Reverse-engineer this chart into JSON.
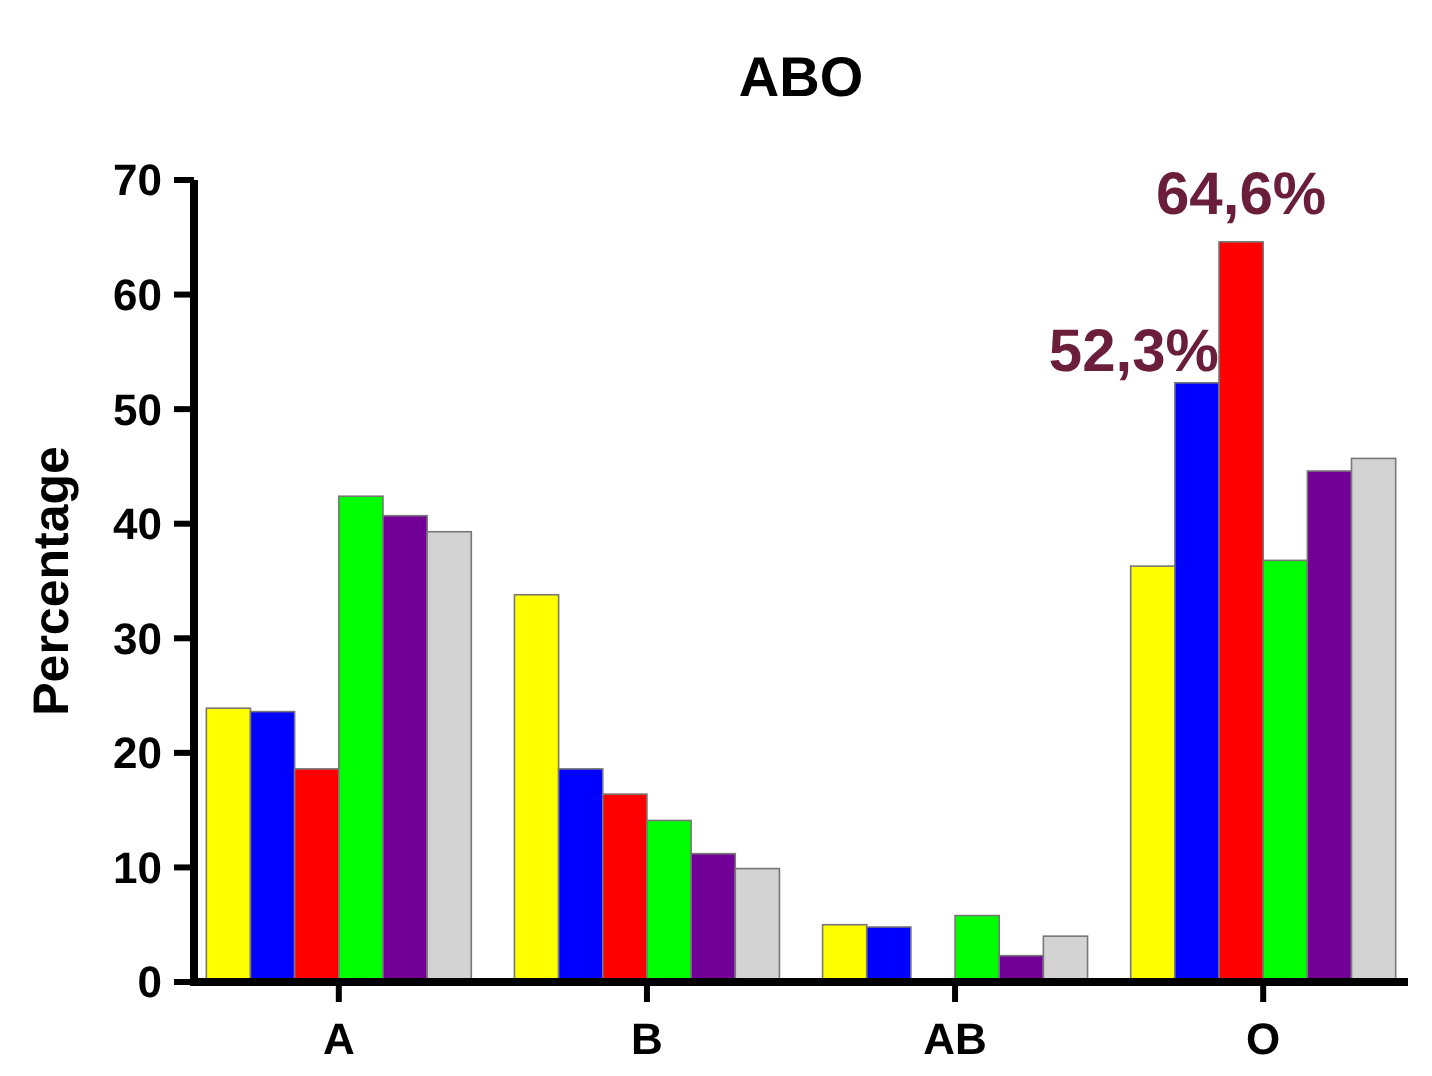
{
  "chart_data": {
    "type": "bar",
    "title": "ABO",
    "ylabel": "Percentage",
    "categories": [
      "A",
      "B",
      "AB",
      "O"
    ],
    "series": [
      {
        "color": "#ffff00",
        "values": [
          23.9,
          33.8,
          5.0,
          36.3
        ]
      },
      {
        "color": "#0000ff",
        "values": [
          23.6,
          18.6,
          4.8,
          52.3
        ],
        "value_labels": [
          null,
          null,
          null,
          "52,3%"
        ]
      },
      {
        "color": "#ff0000",
        "values": [
          18.6,
          16.4,
          0,
          64.6
        ],
        "value_labels": [
          null,
          null,
          null,
          "64,6%"
        ]
      },
      {
        "color": "#00ff00",
        "values": [
          42.4,
          14.1,
          5.8,
          36.8
        ]
      },
      {
        "color": "#730096",
        "values": [
          40.7,
          11.2,
          2.3,
          44.6
        ]
      },
      {
        "color": "#d3d3d3",
        "values": [
          39.3,
          9.9,
          4.0,
          45.7
        ]
      }
    ],
    "ylim": [
      0,
      70
    ],
    "yticks": [
      0,
      10,
      20,
      30,
      40,
      50,
      60,
      70
    ],
    "grid": false
  }
}
